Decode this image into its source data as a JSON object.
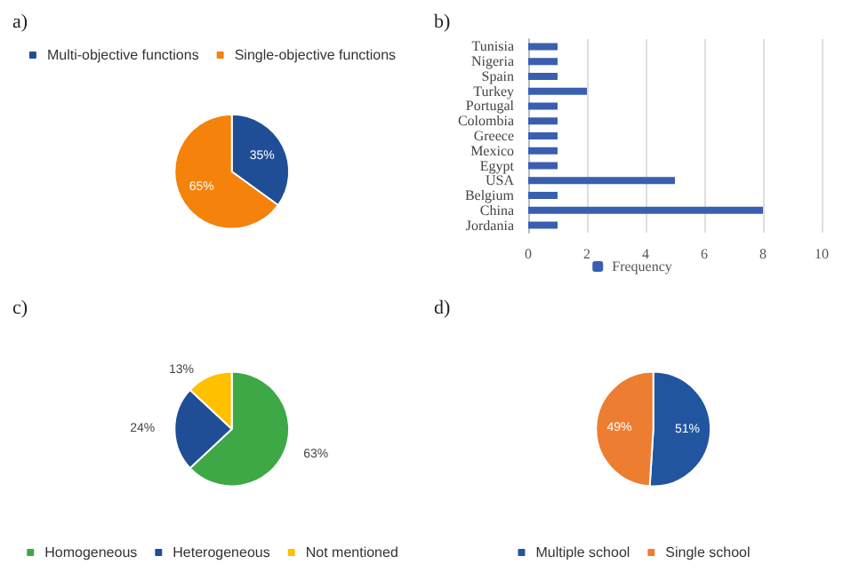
{
  "chart_data": [
    {
      "type": "pie",
      "title": "a)",
      "categories": [
        "Multi-objective functions",
        "Single-objective functions"
      ],
      "values": [
        35,
        65
      ],
      "colors": [
        "#1f4e96",
        "#f5820a"
      ],
      "value_labels": [
        "35%",
        "65%"
      ],
      "legend": "top"
    },
    {
      "type": "bar",
      "title": "b)",
      "orientation": "horizontal",
      "categories": [
        "Tunisia",
        "Nigeria",
        "Spain",
        "Turkey",
        "Portugal",
        "Colombia",
        "Greece",
        "Mexico",
        "Egypt",
        "USA",
        "Belgium",
        "China",
        "Jordania"
      ],
      "series": [
        {
          "name": "Frequency",
          "color": "#3a5fb0",
          "values": [
            1,
            1,
            1,
            2,
            1,
            1,
            1,
            1,
            1,
            5,
            1,
            8,
            1
          ]
        }
      ],
      "xlim": [
        0,
        10
      ],
      "xticks": [
        0,
        2,
        4,
        6,
        8,
        10
      ],
      "grid": "x",
      "legend": "bottom"
    },
    {
      "type": "pie",
      "title": "c)",
      "categories": [
        "Homogeneous",
        "Heterogeneous",
        "Not mentioned"
      ],
      "values": [
        63,
        24,
        13
      ],
      "colors": [
        "#3fa846",
        "#1f4e96",
        "#ffc000"
      ],
      "value_labels": [
        "63%",
        "24%",
        "13%"
      ],
      "legend": "bottom"
    },
    {
      "type": "pie",
      "title": "d)",
      "categories": [
        "Multiple school",
        "Single school"
      ],
      "values": [
        51,
        49
      ],
      "colors": [
        "#2255a0",
        "#ed7d31"
      ],
      "value_labels": [
        "51%",
        "49%"
      ],
      "legend": "bottom"
    }
  ]
}
